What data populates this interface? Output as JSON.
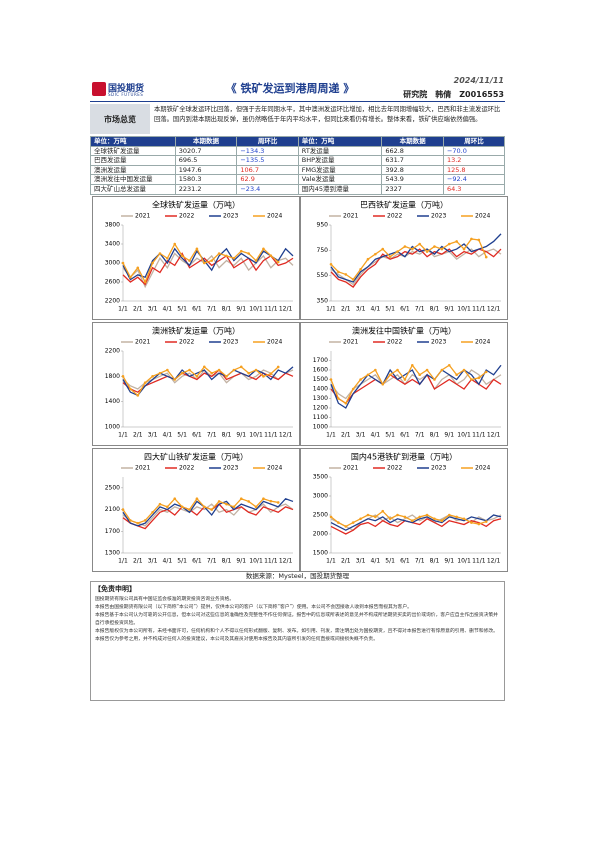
{
  "header": {
    "logo": "国投期货",
    "logo_en": "SDIC FUTURES",
    "title": "《 铁矿发运到港周周递 》",
    "date": "2024/11/11",
    "author": "研究院　韩倩　Z0016553"
  },
  "summary": {
    "label": "市场总览",
    "text": "本期铁矿全球发运环比回落，但强于去年同期水平，其中澳洲发运环比增加，相比去年同期增幅较大，巴西和非主流发运环比回落。国内到港本期出现反弹，虽仍然略低于年内平均水平，但同比来看仍有增长。整体来看，铁矿供应端依然偏强。"
  },
  "table": {
    "header": [
      "单位：万吨",
      "本期数据",
      "周环比",
      "单位：万吨",
      "本期数据",
      "周环比"
    ],
    "rows": [
      [
        "全球铁矿发运量",
        "3020.7",
        "−134.3",
        "RT发运量",
        "662.8",
        "−70.0"
      ],
      [
        "巴西发运量",
        "696.5",
        "−135.5",
        "BHP发运量",
        "631.7",
        "13.2"
      ],
      [
        "澳洲发运量",
        "1947.6",
        "106.7",
        "FMG发运量",
        "392.8",
        "125.8"
      ],
      [
        "澳洲发往中国发运量",
        "1580.3",
        "62.9",
        "Vale发运量",
        "543.9",
        "−92.4"
      ],
      [
        "四大矿山总发运量",
        "2231.2",
        "−23.4",
        "国内45港到港量",
        "2327",
        "64.3"
      ]
    ]
  },
  "chart_data": [
    {
      "type": "line",
      "title": "全球铁矿发运量（万吨）",
      "categories": [
        "1/1",
        null,
        "2/1",
        null,
        "3/1",
        null,
        "4/1",
        null,
        "5/1",
        null,
        "6/1",
        null,
        "7/1",
        null,
        "8/1",
        null,
        "9/1",
        null,
        "10/1",
        null,
        "11/1",
        null,
        "12/1",
        null
      ],
      "ylim": [
        2200,
        3800
      ],
      "yticks": [
        2200,
        2600,
        3000,
        3400,
        3800
      ],
      "series": [
        {
          "name": "2021",
          "color": "#c2b2a3",
          "values": [
            2900,
            2700,
            2850,
            2500,
            2800,
            3100,
            2900,
            3200,
            3050,
            2950,
            3100,
            3000,
            3150,
            2900,
            3050,
            2950,
            3100,
            2850,
            3000,
            3150,
            2900,
            3050,
            3100,
            2950
          ]
        },
        {
          "name": "2022",
          "color": "#e02a22",
          "values": [
            2750,
            2600,
            2700,
            2550,
            2900,
            2800,
            3050,
            2950,
            3200,
            2900,
            3000,
            3100,
            2950,
            3050,
            3150,
            2900,
            3000,
            3100,
            2850,
            3050,
            3150,
            2950,
            3000,
            3100
          ]
        },
        {
          "name": "2023",
          "color": "#1f3f8f",
          "values": [
            2950,
            2650,
            2750,
            2700,
            3050,
            3200,
            3000,
            3300,
            3100,
            2950,
            3250,
            3050,
            2850,
            3150,
            3300,
            3050,
            3200,
            3100,
            3000,
            3250,
            3150,
            3050,
            3300,
            3150
          ]
        },
        {
          "name": "2024",
          "color": "#f5a020",
          "values": [
            3000,
            2700,
            2900,
            2600,
            3000,
            3200,
            3100,
            3400,
            3150,
            3050,
            3300,
            3000,
            3050,
            3200,
            3150,
            3100,
            3250,
            3200,
            3050,
            3300,
            3155,
            3020.7,
            null,
            null
          ]
        }
      ]
    },
    {
      "type": "line",
      "title": "巴西铁矿发运量（万吨）",
      "categories": [
        "1/1",
        null,
        "2/1",
        null,
        "3/1",
        null,
        "4/1",
        null,
        "5/1",
        null,
        "6/1",
        null,
        "7/1",
        null,
        "8/1",
        null,
        "9/1",
        null,
        "10/1",
        null,
        "11/1",
        null,
        "12/1",
        null
      ],
      "ylim": [
        350,
        950
      ],
      "yticks": [
        350,
        550,
        750,
        950
      ],
      "series": [
        {
          "name": "2021",
          "color": "#c2b2a3",
          "values": [
            600,
            560,
            520,
            480,
            560,
            620,
            660,
            700,
            680,
            720,
            700,
            740,
            720,
            760,
            700,
            720,
            740,
            680,
            720,
            760,
            700,
            740,
            760,
            720
          ]
        },
        {
          "name": "2022",
          "color": "#e02a22",
          "values": [
            580,
            520,
            500,
            460,
            540,
            600,
            640,
            720,
            680,
            700,
            740,
            720,
            760,
            700,
            740,
            720,
            760,
            700,
            740,
            720,
            760,
            740,
            700,
            760
          ]
        },
        {
          "name": "2023",
          "color": "#1f3f8f",
          "values": [
            620,
            540,
            520,
            500,
            580,
            620,
            680,
            700,
            720,
            740,
            700,
            780,
            740,
            760,
            720,
            780,
            740,
            760,
            800,
            740,
            760,
            780,
            820,
            880
          ]
        },
        {
          "name": "2024",
          "color": "#f5a020",
          "values": [
            640,
            580,
            560,
            520,
            600,
            680,
            720,
            760,
            700,
            740,
            780,
            760,
            800,
            740,
            780,
            760,
            800,
            820,
            760,
            840,
            832,
            696.5,
            null,
            null
          ]
        }
      ]
    },
    {
      "type": "line",
      "title": "澳洲铁矿发运量（万吨）",
      "categories": [
        "1/1",
        null,
        "2/1",
        null,
        "3/1",
        null,
        "4/1",
        null,
        "5/1",
        null,
        "6/1",
        null,
        "7/1",
        null,
        "8/1",
        null,
        "9/1",
        null,
        "10/1",
        null,
        "11/1",
        null,
        "12/1",
        null
      ],
      "ylim": [
        1000,
        2200
      ],
      "yticks": [
        1000,
        1400,
        1800,
        2200
      ],
      "series": [
        {
          "name": "2021",
          "color": "#c2b2a3",
          "values": [
            1750,
            1650,
            1600,
            1700,
            1750,
            1800,
            1850,
            1700,
            1800,
            1850,
            1750,
            1900,
            1800,
            1850,
            1700,
            1800,
            1850,
            1750,
            1800,
            1900,
            1850,
            1750,
            1850,
            1900
          ]
        },
        {
          "name": "2022",
          "color": "#e02a22",
          "values": [
            1700,
            1600,
            1550,
            1650,
            1700,
            1750,
            1800,
            1750,
            1850,
            1800,
            1750,
            1850,
            1800,
            1900,
            1750,
            1800,
            1850,
            1800,
            1750,
            1850,
            1800,
            1750,
            1850,
            1800
          ]
        },
        {
          "name": "2023",
          "color": "#1f3f8f",
          "values": [
            1750,
            1550,
            1500,
            1650,
            1750,
            1850,
            1800,
            1750,
            1900,
            1800,
            1850,
            1900,
            1750,
            1850,
            1800,
            1900,
            1850,
            1800,
            1900,
            1850,
            1750,
            1900,
            1850,
            1950
          ]
        },
        {
          "name": "2024",
          "color": "#f5a020",
          "values": [
            1800,
            1600,
            1500,
            1700,
            1800,
            1850,
            1900,
            1750,
            1850,
            1900,
            1800,
            1950,
            1850,
            1900,
            1800,
            1900,
            1950,
            1850,
            1900,
            1800,
            1841,
            1947.6,
            null,
            null
          ]
        }
      ]
    },
    {
      "type": "line",
      "title": "澳洲发往中国铁矿量（万吨）",
      "categories": [
        "1/1",
        null,
        "2/1",
        null,
        "3/1",
        null,
        "4/1",
        null,
        "5/1",
        null,
        "6/1",
        null,
        "7/1",
        null,
        "8/1",
        null,
        "9/1",
        null,
        "10/1",
        null,
        "11/1",
        null,
        "12/1",
        null
      ],
      "ylim": [
        1000,
        1800
      ],
      "yticks": [
        1000,
        1100,
        1200,
        1300,
        1400,
        1500,
        1600,
        1700
      ],
      "series": [
        {
          "name": "2021",
          "color": "#c2b2a3",
          "values": [
            1450,
            1350,
            1300,
            1400,
            1450,
            1500,
            1550,
            1450,
            1500,
            1550,
            1450,
            1550,
            1500,
            1550,
            1400,
            1500,
            1550,
            1450,
            1500,
            1600,
            1550,
            1450,
            1500,
            1550
          ]
        },
        {
          "name": "2022",
          "color": "#e02a22",
          "values": [
            1400,
            1300,
            1250,
            1350,
            1400,
            1450,
            1500,
            1450,
            1550,
            1500,
            1450,
            1500,
            1450,
            1550,
            1400,
            1450,
            1500,
            1450,
            1400,
            1500,
            1450,
            1400,
            1500,
            1450
          ]
        },
        {
          "name": "2023",
          "color": "#1f3f8f",
          "values": [
            1450,
            1250,
            1200,
            1350,
            1450,
            1550,
            1500,
            1450,
            1600,
            1500,
            1550,
            1600,
            1450,
            1550,
            1500,
            1600,
            1550,
            1500,
            1600,
            1550,
            1450,
            1600,
            1550,
            1650
          ]
        },
        {
          "name": "2024",
          "color": "#f5a020",
          "values": [
            1500,
            1300,
            1250,
            1400,
            1500,
            1550,
            1600,
            1450,
            1550,
            1600,
            1500,
            1650,
            1550,
            1600,
            1500,
            1600,
            1650,
            1550,
            1600,
            1500,
            1517.4,
            1580.3,
            null,
            null
          ]
        }
      ]
    },
    {
      "type": "line",
      "title": "四大矿山铁矿发运量（万吨）",
      "categories": [
        "1/1",
        null,
        "2/1",
        null,
        "3/1",
        null,
        "4/1",
        null,
        "5/1",
        null,
        "6/1",
        null,
        "7/1",
        null,
        "8/1",
        null,
        "9/1",
        null,
        "10/1",
        null,
        "11/1",
        null,
        "12/1",
        null
      ],
      "ylim": [
        1300,
        2700
      ],
      "yticks": [
        1300,
        1700,
        2100,
        2500
      ],
      "series": [
        {
          "name": "2021",
          "color": "#c2b2a3",
          "values": [
            2000,
            1900,
            1850,
            1800,
            1950,
            2100,
            2050,
            2150,
            2100,
            2050,
            2150,
            2100,
            2200,
            2050,
            2100,
            2000,
            2150,
            2050,
            2100,
            2200,
            2050,
            2150,
            2200,
            2100
          ]
        },
        {
          "name": "2022",
          "color": "#e02a22",
          "values": [
            1950,
            1850,
            1800,
            1750,
            1900,
            2050,
            2100,
            2000,
            2150,
            2100,
            2000,
            2150,
            2100,
            2200,
            2050,
            2100,
            2150,
            2050,
            2000,
            2150,
            2100,
            2050,
            2150,
            2100
          ]
        },
        {
          "name": "2023",
          "color": "#1f3f8f",
          "values": [
            2050,
            1850,
            1800,
            1850,
            2000,
            2150,
            2100,
            2200,
            2150,
            2050,
            2250,
            2150,
            2000,
            2200,
            2250,
            2100,
            2200,
            2150,
            2100,
            2250,
            2200,
            2150,
            2300,
            2250
          ]
        },
        {
          "name": "2024",
          "color": "#f5a020",
          "values": [
            2100,
            1900,
            1850,
            1900,
            2050,
            2200,
            2150,
            2300,
            2150,
            2100,
            2300,
            2150,
            2100,
            2250,
            2200,
            2150,
            2300,
            2250,
            2150,
            2300,
            2254.6,
            2231.2,
            null,
            null
          ]
        }
      ]
    },
    {
      "type": "line",
      "title": "国内45港铁矿到港量（万吨）",
      "categories": [
        "1/1",
        null,
        "2/1",
        null,
        "3/1",
        null,
        "4/1",
        null,
        "5/1",
        null,
        "6/1",
        null,
        "7/1",
        null,
        "8/1",
        null,
        "9/1",
        null,
        "10/1",
        null,
        "11/1",
        null,
        "12/1",
        null
      ],
      "ylim": [
        1500,
        3500
      ],
      "yticks": [
        1500,
        2000,
        2500,
        3000,
        3500
      ],
      "series": [
        {
          "name": "2021",
          "color": "#c2b2a3",
          "values": [
            2400,
            2300,
            2200,
            2100,
            2300,
            2400,
            2500,
            2350,
            2450,
            2300,
            2400,
            2500,
            2350,
            2450,
            2300,
            2400,
            2500,
            2350,
            2400,
            2300,
            2450,
            2350,
            2400,
            2500
          ]
        },
        {
          "name": "2022",
          "color": "#e02a22",
          "values": [
            2200,
            2100,
            2000,
            2100,
            2250,
            2300,
            2200,
            2350,
            2250,
            2200,
            2350,
            2300,
            2250,
            2400,
            2300,
            2200,
            2350,
            2300,
            2250,
            2350,
            2300,
            2200,
            2350,
            2400
          ]
        },
        {
          "name": "2023",
          "color": "#1f3f8f",
          "values": [
            2300,
            2200,
            2100,
            2200,
            2300,
            2400,
            2350,
            2450,
            2300,
            2400,
            2350,
            2300,
            2400,
            2450,
            2350,
            2300,
            2450,
            2400,
            2350,
            2450,
            2400,
            2350,
            2500,
            2450
          ]
        },
        {
          "name": "2024",
          "color": "#f5a020",
          "values": [
            2450,
            2300,
            2200,
            2300,
            2400,
            2500,
            2450,
            2600,
            2400,
            2500,
            2450,
            2350,
            2450,
            2500,
            2400,
            2350,
            2500,
            2450,
            2400,
            2300,
            2262.7,
            2327,
            null,
            null
          ]
        }
      ]
    }
  ],
  "source": "数据来源：Mysteel，国投期货整理",
  "disclaimer": {
    "title": "【免责申明】",
    "paragraphs": [
      "国投期货有限公司具有中国证监会核准的期货投资咨询业务资格。",
      "本报告由国投期货有限公司（以下简称“本公司”）提供，仅供本公司的客户（以下简称“客户”）使用。本公司不会因接收人收到本报告而视其为客户。",
      "本报告基于本公司认为可靠的公开信息，但本公司对这些信息的准确性及完整性不作任何保证。报告中的信息或所表述的意见并不构成所述期货买卖的出价或询价，客户应自主作出投资决策并自行承担投资风险。",
      "本报告版权仅为本公司所有，未经书面许可，任何机构和个人不得以任何形式翻版、复制、发布。如引用、刊发，需注明出处为国投期货，且不得对本报告进行有悖原意的引用、删节和修改。",
      "本报告仅为参考之用，并不构成对任何人的投资建议，本公司及其雇员对使用本报告及其内容所引发的任何直接或间接损失概不负责。"
    ]
  }
}
